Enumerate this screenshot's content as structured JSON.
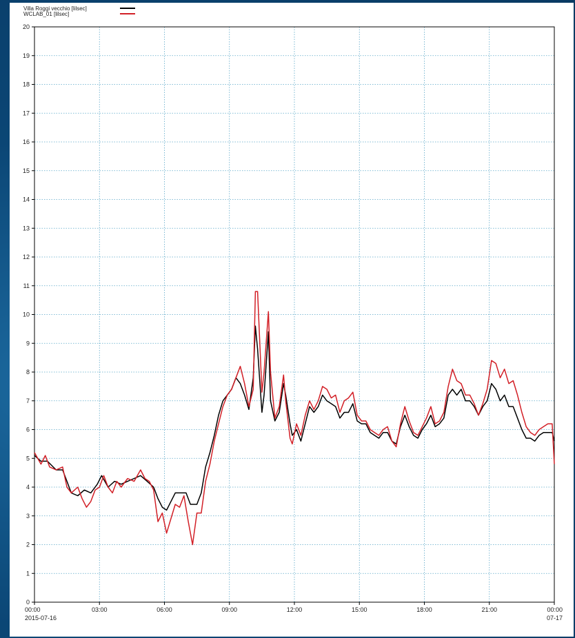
{
  "chart_data": {
    "type": "line",
    "title": "",
    "xlabel": "",
    "ylabel": "",
    "ylim": [
      0,
      20
    ],
    "y_ticks": [
      0,
      1,
      2,
      3,
      4,
      5,
      6,
      7,
      8,
      9,
      10,
      11,
      12,
      13,
      14,
      15,
      16,
      17,
      18,
      19,
      20
    ],
    "x_range_hours": [
      0,
      24
    ],
    "x_ticks": [
      {
        "hour": 0,
        "label": "00:00",
        "sublabel": "2015-07-16"
      },
      {
        "hour": 3,
        "label": "03:00",
        "sublabel": ""
      },
      {
        "hour": 6,
        "label": "06:00",
        "sublabel": ""
      },
      {
        "hour": 9,
        "label": "09:00",
        "sublabel": ""
      },
      {
        "hour": 12,
        "label": "12:00",
        "sublabel": ""
      },
      {
        "hour": 15,
        "label": "15:00",
        "sublabel": ""
      },
      {
        "hour": 18,
        "label": "18:00",
        "sublabel": ""
      },
      {
        "hour": 21,
        "label": "21:00",
        "sublabel": ""
      },
      {
        "hour": 24,
        "label": "00:00",
        "sublabel": "07-17"
      }
    ],
    "grid": true,
    "legend": {
      "placement": "top-left",
      "entries": [
        {
          "label": "Villa Roggi vecchio [lilsec]",
          "color": "#000000"
        },
        {
          "label": "WCLAB_01 [lilsec]",
          "color": "#d21f26"
        }
      ]
    },
    "series": [
      {
        "name": "Villa Roggi vecchio [lilsec]",
        "color": "#000000",
        "points": [
          [
            0.0,
            5.1
          ],
          [
            0.3,
            4.9
          ],
          [
            0.6,
            4.9
          ],
          [
            1.0,
            4.6
          ],
          [
            1.3,
            4.6
          ],
          [
            1.5,
            4.2
          ],
          [
            1.7,
            3.8
          ],
          [
            2.0,
            3.7
          ],
          [
            2.3,
            3.9
          ],
          [
            2.6,
            3.8
          ],
          [
            2.9,
            4.1
          ],
          [
            3.1,
            4.4
          ],
          [
            3.4,
            4.0
          ],
          [
            3.7,
            4.2
          ],
          [
            4.0,
            4.1
          ],
          [
            4.3,
            4.2
          ],
          [
            4.6,
            4.3
          ],
          [
            4.9,
            4.4
          ],
          [
            5.2,
            4.2
          ],
          [
            5.5,
            4.0
          ],
          [
            5.7,
            3.6
          ],
          [
            5.9,
            3.3
          ],
          [
            6.1,
            3.2
          ],
          [
            6.3,
            3.5
          ],
          [
            6.5,
            3.8
          ],
          [
            6.8,
            3.8
          ],
          [
            7.0,
            3.8
          ],
          [
            7.2,
            3.4
          ],
          [
            7.5,
            3.4
          ],
          [
            7.7,
            3.8
          ],
          [
            7.9,
            4.7
          ],
          [
            8.1,
            5.2
          ],
          [
            8.3,
            5.8
          ],
          [
            8.5,
            6.5
          ],
          [
            8.7,
            7.0
          ],
          [
            8.9,
            7.2
          ],
          [
            9.1,
            7.4
          ],
          [
            9.3,
            7.8
          ],
          [
            9.5,
            7.6
          ],
          [
            9.7,
            7.2
          ],
          [
            9.9,
            6.7
          ],
          [
            10.1,
            7.8
          ],
          [
            10.2,
            9.6
          ],
          [
            10.3,
            8.8
          ],
          [
            10.5,
            6.6
          ],
          [
            10.6,
            7.2
          ],
          [
            10.8,
            9.4
          ],
          [
            10.9,
            7.0
          ],
          [
            11.1,
            6.3
          ],
          [
            11.3,
            6.6
          ],
          [
            11.5,
            7.6
          ],
          [
            11.6,
            7.2
          ],
          [
            11.8,
            6.2
          ],
          [
            11.9,
            5.8
          ],
          [
            12.1,
            6.0
          ],
          [
            12.3,
            5.6
          ],
          [
            12.5,
            6.2
          ],
          [
            12.7,
            6.8
          ],
          [
            12.9,
            6.6
          ],
          [
            13.1,
            6.8
          ],
          [
            13.3,
            7.2
          ],
          [
            13.5,
            7.0
          ],
          [
            13.7,
            6.9
          ],
          [
            13.9,
            6.8
          ],
          [
            14.1,
            6.4
          ],
          [
            14.3,
            6.6
          ],
          [
            14.5,
            6.6
          ],
          [
            14.7,
            6.9
          ],
          [
            14.9,
            6.3
          ],
          [
            15.1,
            6.2
          ],
          [
            15.3,
            6.2
          ],
          [
            15.5,
            5.9
          ],
          [
            15.7,
            5.8
          ],
          [
            15.9,
            5.7
          ],
          [
            16.1,
            5.9
          ],
          [
            16.3,
            5.9
          ],
          [
            16.5,
            5.6
          ],
          [
            16.7,
            5.5
          ],
          [
            16.9,
            6.1
          ],
          [
            17.1,
            6.5
          ],
          [
            17.3,
            6.1
          ],
          [
            17.5,
            5.8
          ],
          [
            17.7,
            5.7
          ],
          [
            17.9,
            6.0
          ],
          [
            18.1,
            6.2
          ],
          [
            18.3,
            6.5
          ],
          [
            18.5,
            6.1
          ],
          [
            18.7,
            6.2
          ],
          [
            18.9,
            6.4
          ],
          [
            19.1,
            7.2
          ],
          [
            19.3,
            7.4
          ],
          [
            19.5,
            7.2
          ],
          [
            19.7,
            7.4
          ],
          [
            19.9,
            7.0
          ],
          [
            20.1,
            7.0
          ],
          [
            20.3,
            6.8
          ],
          [
            20.5,
            6.5
          ],
          [
            20.7,
            6.8
          ],
          [
            20.9,
            7.0
          ],
          [
            21.1,
            7.6
          ],
          [
            21.3,
            7.4
          ],
          [
            21.5,
            7.0
          ],
          [
            21.7,
            7.2
          ],
          [
            21.9,
            6.8
          ],
          [
            22.1,
            6.8
          ],
          [
            22.3,
            6.4
          ],
          [
            22.5,
            6.0
          ],
          [
            22.7,
            5.7
          ],
          [
            22.9,
            5.7
          ],
          [
            23.1,
            5.6
          ],
          [
            23.3,
            5.8
          ],
          [
            23.5,
            5.9
          ],
          [
            23.7,
            5.9
          ],
          [
            23.9,
            5.9
          ],
          [
            24.0,
            5.6
          ]
        ]
      },
      {
        "name": "WCLAB_01 [lilsec]",
        "color": "#d21f26",
        "points": [
          [
            0.0,
            5.2
          ],
          [
            0.3,
            4.8
          ],
          [
            0.5,
            5.1
          ],
          [
            0.7,
            4.7
          ],
          [
            1.0,
            4.6
          ],
          [
            1.3,
            4.7
          ],
          [
            1.5,
            4.0
          ],
          [
            1.7,
            3.8
          ],
          [
            2.0,
            4.0
          ],
          [
            2.2,
            3.6
          ],
          [
            2.4,
            3.3
          ],
          [
            2.6,
            3.5
          ],
          [
            2.8,
            3.9
          ],
          [
            3.0,
            4.0
          ],
          [
            3.2,
            4.4
          ],
          [
            3.4,
            4.0
          ],
          [
            3.6,
            3.8
          ],
          [
            3.8,
            4.2
          ],
          [
            4.0,
            4.0
          ],
          [
            4.3,
            4.3
          ],
          [
            4.6,
            4.2
          ],
          [
            4.9,
            4.6
          ],
          [
            5.1,
            4.3
          ],
          [
            5.3,
            4.2
          ],
          [
            5.5,
            3.9
          ],
          [
            5.7,
            2.8
          ],
          [
            5.9,
            3.1
          ],
          [
            6.1,
            2.4
          ],
          [
            6.3,
            2.9
          ],
          [
            6.5,
            3.4
          ],
          [
            6.7,
            3.3
          ],
          [
            6.9,
            3.7
          ],
          [
            7.1,
            2.8
          ],
          [
            7.3,
            2.0
          ],
          [
            7.5,
            3.1
          ],
          [
            7.7,
            3.1
          ],
          [
            7.9,
            4.2
          ],
          [
            8.1,
            4.8
          ],
          [
            8.3,
            5.6
          ],
          [
            8.5,
            6.2
          ],
          [
            8.7,
            6.8
          ],
          [
            8.9,
            7.2
          ],
          [
            9.1,
            7.4
          ],
          [
            9.3,
            7.8
          ],
          [
            9.5,
            8.2
          ],
          [
            9.7,
            7.6
          ],
          [
            9.9,
            6.8
          ],
          [
            10.1,
            7.4
          ],
          [
            10.2,
            10.8
          ],
          [
            10.3,
            10.8
          ],
          [
            10.5,
            7.3
          ],
          [
            10.6,
            8.0
          ],
          [
            10.8,
            10.1
          ],
          [
            10.9,
            8.0
          ],
          [
            11.1,
            6.4
          ],
          [
            11.3,
            6.8
          ],
          [
            11.5,
            7.9
          ],
          [
            11.6,
            7.0
          ],
          [
            11.8,
            5.7
          ],
          [
            11.9,
            5.5
          ],
          [
            12.1,
            6.2
          ],
          [
            12.3,
            5.8
          ],
          [
            12.5,
            6.5
          ],
          [
            12.7,
            7.0
          ],
          [
            12.9,
            6.7
          ],
          [
            13.1,
            7.0
          ],
          [
            13.3,
            7.5
          ],
          [
            13.5,
            7.4
          ],
          [
            13.7,
            7.1
          ],
          [
            13.9,
            7.2
          ],
          [
            14.1,
            6.6
          ],
          [
            14.3,
            7.0
          ],
          [
            14.5,
            7.1
          ],
          [
            14.7,
            7.3
          ],
          [
            14.9,
            6.5
          ],
          [
            15.1,
            6.3
          ],
          [
            15.3,
            6.3
          ],
          [
            15.5,
            6.0
          ],
          [
            15.7,
            5.9
          ],
          [
            15.9,
            5.8
          ],
          [
            16.1,
            6.0
          ],
          [
            16.3,
            6.1
          ],
          [
            16.5,
            5.6
          ],
          [
            16.7,
            5.4
          ],
          [
            16.9,
            6.2
          ],
          [
            17.1,
            6.8
          ],
          [
            17.3,
            6.3
          ],
          [
            17.5,
            5.9
          ],
          [
            17.7,
            5.8
          ],
          [
            17.9,
            6.1
          ],
          [
            18.1,
            6.4
          ],
          [
            18.3,
            6.8
          ],
          [
            18.5,
            6.2
          ],
          [
            18.7,
            6.3
          ],
          [
            18.9,
            6.6
          ],
          [
            19.1,
            7.5
          ],
          [
            19.3,
            8.1
          ],
          [
            19.5,
            7.7
          ],
          [
            19.7,
            7.6
          ],
          [
            19.9,
            7.2
          ],
          [
            20.1,
            7.2
          ],
          [
            20.3,
            6.9
          ],
          [
            20.5,
            6.5
          ],
          [
            20.7,
            6.9
          ],
          [
            20.9,
            7.4
          ],
          [
            21.1,
            8.4
          ],
          [
            21.3,
            8.3
          ],
          [
            21.5,
            7.8
          ],
          [
            21.7,
            8.1
          ],
          [
            21.9,
            7.6
          ],
          [
            22.1,
            7.7
          ],
          [
            22.3,
            7.2
          ],
          [
            22.5,
            6.6
          ],
          [
            22.7,
            6.1
          ],
          [
            22.9,
            5.9
          ],
          [
            23.1,
            5.8
          ],
          [
            23.3,
            6.0
          ],
          [
            23.5,
            6.1
          ],
          [
            23.7,
            6.2
          ],
          [
            23.9,
            6.2
          ],
          [
            24.0,
            4.8
          ]
        ]
      }
    ]
  }
}
